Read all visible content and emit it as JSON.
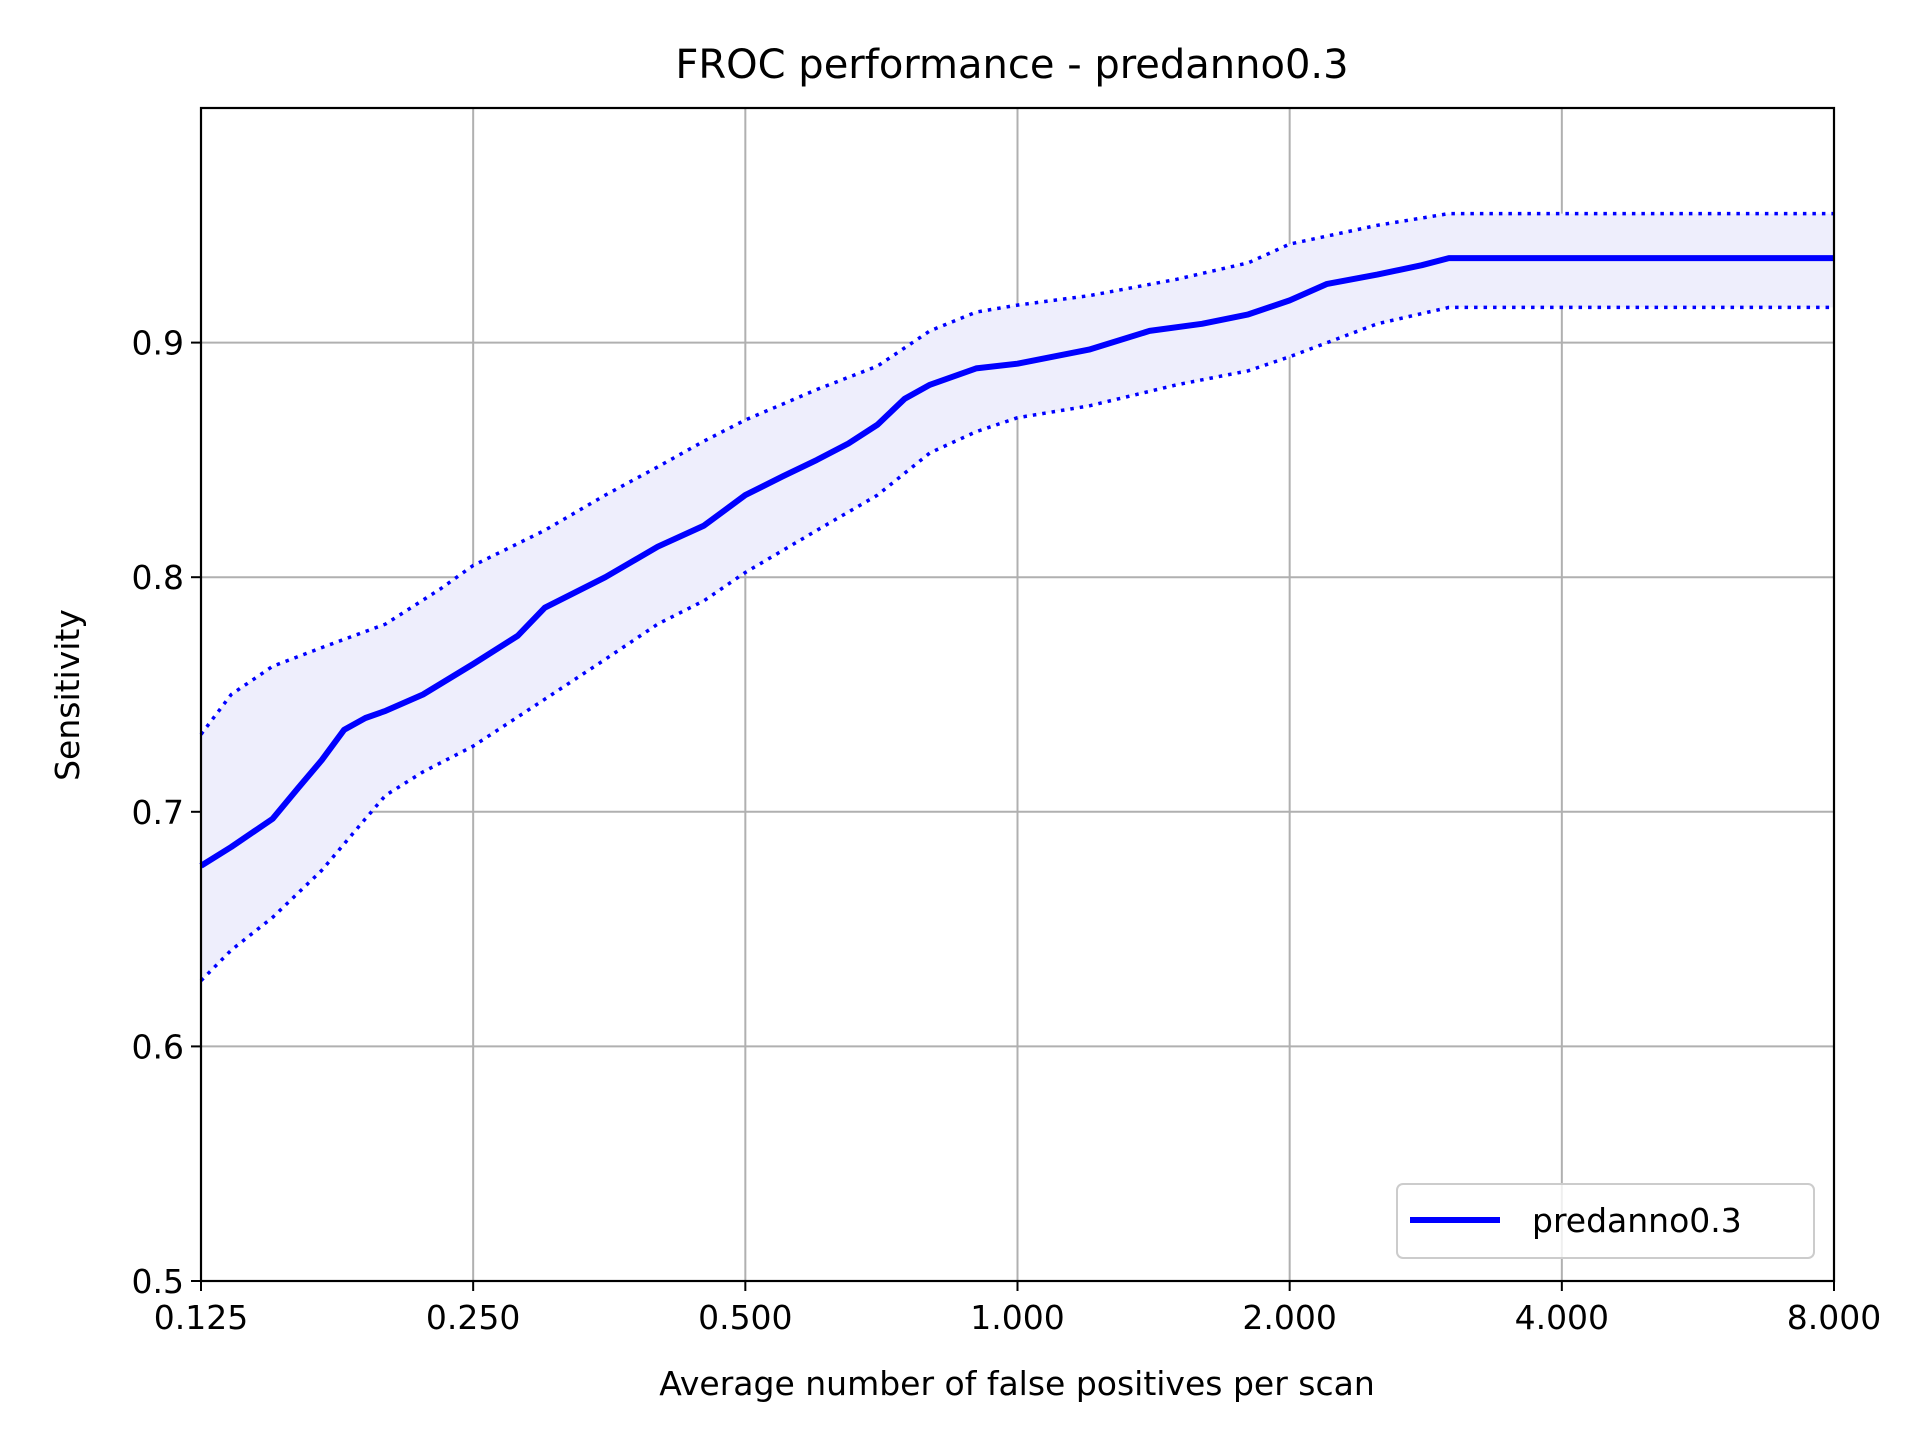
{
  "chart_data": {
    "type": "line",
    "title": "FROC performance - predanno0.3",
    "xlabel": "Average number of false positives per scan",
    "ylabel": "Sensitivity",
    "xscale": "log2",
    "xlim": [
      0.125,
      8.0
    ],
    "ylim": [
      0.5,
      1.0
    ],
    "xticks": [
      0.125,
      0.25,
      0.5,
      1.0,
      2.0,
      4.0,
      8.0
    ],
    "xtick_labels": [
      "0.125",
      "0.250",
      "0.500",
      "1.000",
      "2.000",
      "4.000",
      "8.000"
    ],
    "yticks": [
      0.5,
      0.6,
      0.7,
      0.8,
      0.9
    ],
    "ytick_labels": [
      "0.5",
      "0.6",
      "0.7",
      "0.8",
      "0.9"
    ],
    "grid": true,
    "legend_position": "lower-right",
    "series": [
      {
        "name": "predanno0.3",
        "color": "#0000ff",
        "style": "solid",
        "x": [
          0.125,
          0.135,
          0.15,
          0.16,
          0.17,
          0.18,
          0.19,
          0.2,
          0.22,
          0.25,
          0.28,
          0.3,
          0.35,
          0.4,
          0.45,
          0.5,
          0.55,
          0.6,
          0.65,
          0.7,
          0.75,
          0.8,
          0.9,
          1.0,
          1.2,
          1.4,
          1.6,
          1.8,
          2.0,
          2.2,
          2.5,
          2.8,
          3.0,
          4.0,
          8.0
        ],
        "y": [
          0.677,
          0.685,
          0.697,
          0.71,
          0.722,
          0.735,
          0.74,
          0.743,
          0.75,
          0.763,
          0.775,
          0.787,
          0.8,
          0.813,
          0.822,
          0.835,
          0.843,
          0.85,
          0.857,
          0.865,
          0.876,
          0.882,
          0.889,
          0.891,
          0.897,
          0.905,
          0.908,
          0.912,
          0.918,
          0.925,
          0.929,
          0.933,
          0.936,
          0.936,
          0.936
        ]
      },
      {
        "name": "",
        "color": "#0000ff",
        "style": "dotted",
        "role": "upper-bound",
        "x": [
          0.125,
          0.135,
          0.15,
          0.17,
          0.2,
          0.23,
          0.25,
          0.3,
          0.35,
          0.4,
          0.45,
          0.5,
          0.6,
          0.7,
          0.8,
          0.9,
          1.0,
          1.2,
          1.5,
          1.8,
          2.0,
          2.5,
          3.0,
          4.0,
          8.0
        ],
        "y": [
          0.733,
          0.75,
          0.762,
          0.77,
          0.78,
          0.795,
          0.805,
          0.82,
          0.835,
          0.847,
          0.858,
          0.867,
          0.88,
          0.89,
          0.905,
          0.913,
          0.916,
          0.92,
          0.927,
          0.934,
          0.942,
          0.95,
          0.955,
          0.955,
          0.955
        ]
      },
      {
        "name": "",
        "color": "#0000ff",
        "style": "dotted",
        "role": "lower-bound",
        "x": [
          0.125,
          0.135,
          0.15,
          0.17,
          0.19,
          0.2,
          0.22,
          0.25,
          0.3,
          0.35,
          0.4,
          0.45,
          0.5,
          0.6,
          0.7,
          0.8,
          0.9,
          1.0,
          1.2,
          1.5,
          1.8,
          2.0,
          2.5,
          3.0,
          4.0,
          8.0
        ],
        "y": [
          0.628,
          0.641,
          0.655,
          0.675,
          0.697,
          0.707,
          0.717,
          0.728,
          0.748,
          0.765,
          0.78,
          0.79,
          0.802,
          0.82,
          0.835,
          0.853,
          0.862,
          0.868,
          0.873,
          0.882,
          0.888,
          0.894,
          0.908,
          0.915,
          0.915,
          0.915
        ]
      }
    ],
    "band_color": "#eeeefc"
  }
}
